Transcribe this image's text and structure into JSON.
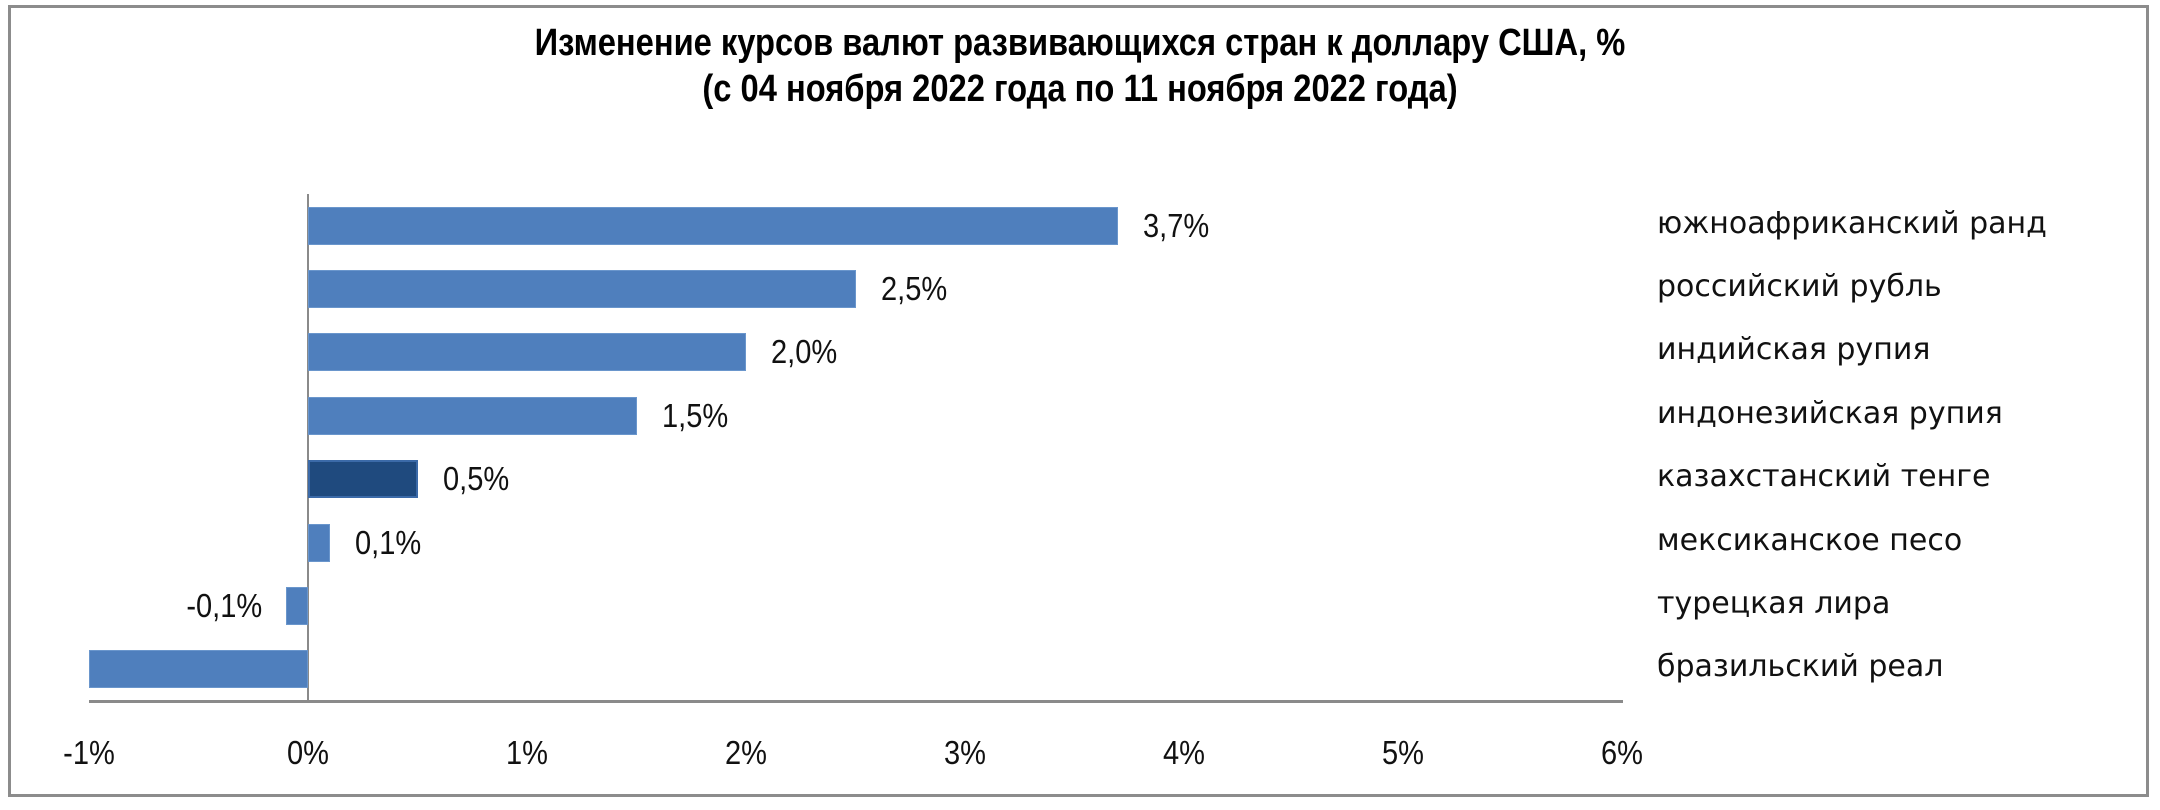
{
  "chart_data": {
    "type": "bar",
    "orientation": "horizontal",
    "title": "Изменение курсов валют развивающихся стран к доллару США, %",
    "subtitle": "(с 04 ноября 2022 года по 11 ноября 2022 года)",
    "categories": [
      "южноафриканский ранд",
      "российский рубль",
      "индийская рупия",
      "индонезийская рупия",
      "казахстанский тенге",
      "мексиканское песо",
      "турецкая лира",
      "бразильский реал"
    ],
    "values": [
      3.7,
      2.5,
      2.0,
      1.5,
      0.5,
      0.1,
      -0.1,
      -1.0
    ],
    "value_labels": [
      "3,7%",
      "2,5%",
      "2,0%",
      "1,5%",
      "0,5%",
      "0,1%",
      "-0,1%",
      ""
    ],
    "highlighted_category": "казахстанский тенге",
    "xlabel": "",
    "ylabel": "",
    "xlim": [
      -1,
      6
    ],
    "x_ticks": [
      "-1%",
      "0%",
      "1%",
      "2%",
      "3%",
      "4%",
      "5%",
      "6%"
    ],
    "grid": false,
    "legend": "none",
    "colors": {
      "bar": "#4f7fbd",
      "highlight": "#1f4a7e",
      "axis": "#8a8a8a"
    }
  }
}
